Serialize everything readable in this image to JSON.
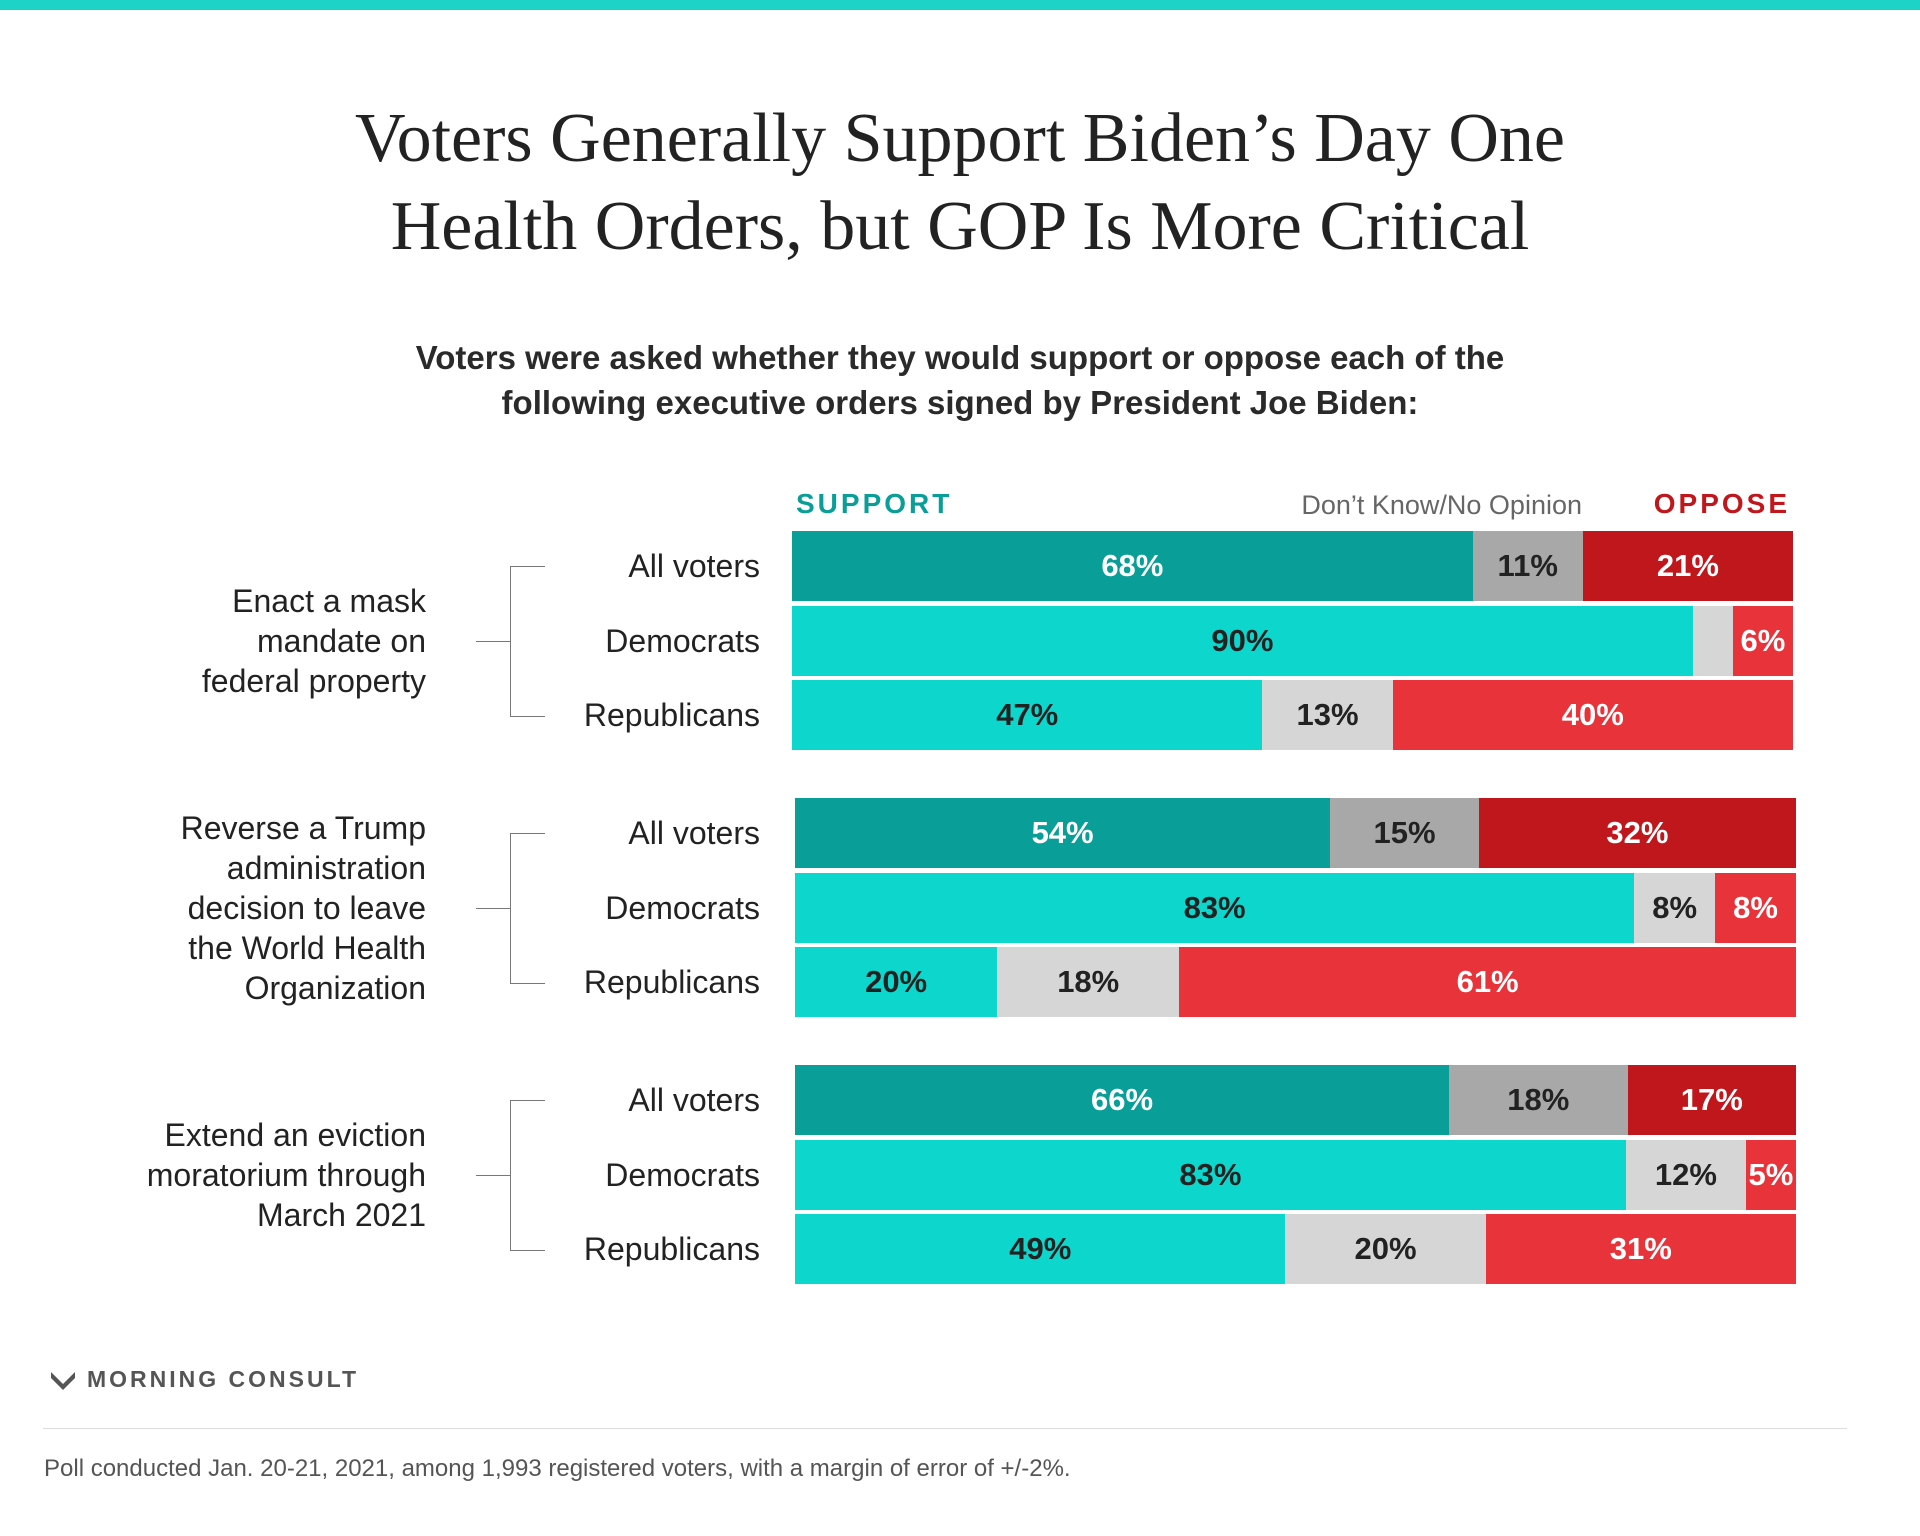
{
  "title_lines": [
    "Voters Generally Support Biden’s Day One",
    "Health Orders, but GOP Is More Critical"
  ],
  "subtitle_lines": [
    "Voters were asked whether they would support or oppose each of the",
    "following executive orders signed by President Joe Biden:"
  ],
  "colors": {
    "support_all": "#0a9e98",
    "support_party": "#0dd6cc",
    "dk_all": "#a8a8a8",
    "dk_party": "#d6d6d6",
    "oppose_all": "#c0171c",
    "oppose_party": "#e8333a"
  },
  "chart_data": {
    "type": "bar",
    "orientation": "horizontal",
    "stacked": true,
    "legend": {
      "support": "SUPPORT",
      "dk": "Don’t Know/No Opinion",
      "oppose": "OPPOSE",
      "placement": "top"
    },
    "groups": [
      {
        "label_lines": [
          "Enact a mask",
          "mandate on",
          "federal property"
        ],
        "rows": [
          {
            "label": "All voters",
            "support": 68,
            "dk": 11,
            "oppose": 21,
            "labels": [
              "68%",
              "11%",
              "21%"
            ]
          },
          {
            "label": "Democrats",
            "support": 90,
            "dk": 4,
            "oppose": 6,
            "labels": [
              "90%",
              "",
              "6%"
            ]
          },
          {
            "label": "Republicans",
            "support": 47,
            "dk": 13,
            "oppose": 40,
            "labels": [
              "47%",
              "13%",
              "40%"
            ]
          }
        ]
      },
      {
        "label_lines": [
          "Reverse a Trump",
          "administration",
          "decision to leave",
          "the World Health",
          "Organization"
        ],
        "rows": [
          {
            "label": "All voters",
            "support": 54,
            "dk": 15,
            "oppose": 32,
            "labels": [
              "54%",
              "15%",
              "32%"
            ]
          },
          {
            "label": "Democrats",
            "support": 83,
            "dk": 8,
            "oppose": 8,
            "labels": [
              "83%",
              "8%",
              "8%"
            ]
          },
          {
            "label": "Republicans",
            "support": 20,
            "dk": 18,
            "oppose": 61,
            "labels": [
              "20%",
              "18%",
              "61%"
            ]
          }
        ]
      },
      {
        "label_lines": [
          "Extend an eviction",
          "moratorium through",
          "March 2021"
        ],
        "rows": [
          {
            "label": "All voters",
            "support": 66,
            "dk": 18,
            "oppose": 17,
            "labels": [
              "66%",
              "18%",
              "17%"
            ]
          },
          {
            "label": "Democrats",
            "support": 83,
            "dk": 12,
            "oppose": 5,
            "labels": [
              "83%",
              "12%",
              "5%"
            ]
          },
          {
            "label": "Republicans",
            "support": 49,
            "dk": 20,
            "oppose": 31,
            "labels": [
              "49%",
              "20%",
              "31%"
            ]
          }
        ]
      }
    ]
  },
  "brand": "MORNING CONSULT",
  "footnote": "Poll conducted Jan. 20-21, 2021, among 1,993 registered voters, with a margin of error of +/-2%."
}
